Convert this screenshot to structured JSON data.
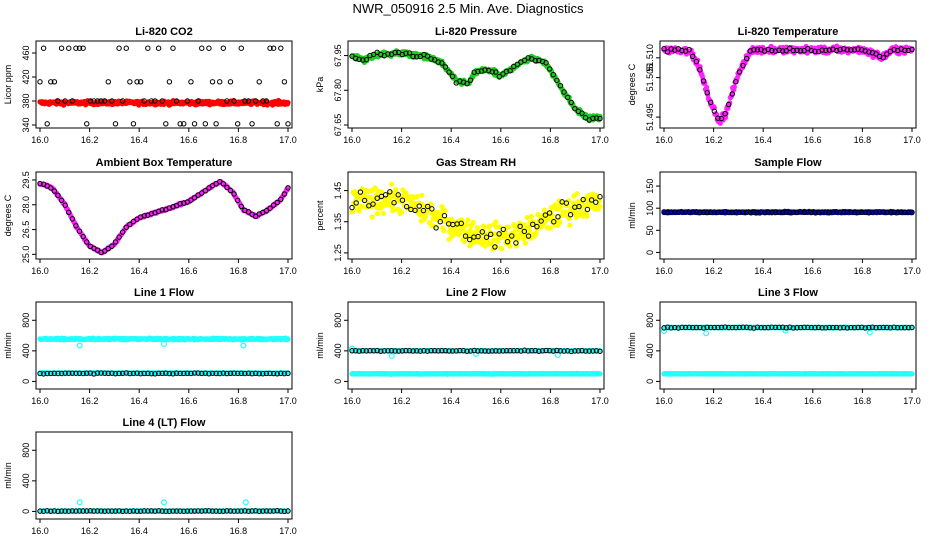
{
  "title": "NWR_050916  2.5 Min. Ave. Diagnostics",
  "colors": {
    "red": "#ff0000",
    "green": "#22cc22",
    "magenta": "#ff22ff",
    "yellow": "#ffff00",
    "blue": "#0000cc",
    "cyan": "#22ffff",
    "black": "#000000"
  },
  "chart_data": [
    {
      "type": "scatter",
      "title": "Li-820 CO2",
      "ylabel": "Licor ppm",
      "xticks": [
        "16.0",
        "16.2",
        "16.4",
        "16.6",
        "16.8",
        "17.0"
      ],
      "xlim": [
        16.0,
        17.0
      ],
      "yticks": [
        "340",
        "380",
        "420",
        "460"
      ],
      "ylim": [
        340,
        475
      ],
      "bg": {
        "color": "red",
        "shape": "flat",
        "level": 377,
        "noise": 3
      },
      "fg": {
        "shape": "levels",
        "levels": [
          342,
          380,
          412,
          468
        ],
        "weights": [
          0.25,
          0.35,
          0.15,
          0.25
        ],
        "count": 70
      }
    },
    {
      "type": "scatter",
      "title": "Li-820 Pressure",
      "ylabel": "kPa",
      "xticks": [
        "16.0",
        "16.2",
        "16.4",
        "16.6",
        "16.8",
        "17.0"
      ],
      "xlim": [
        16.0,
        17.0
      ],
      "yticks": [
        "67.65",
        "67.80",
        "67.95"
      ],
      "ylim": [
        67.65,
        68.0
      ],
      "bg": {
        "color": "green",
        "shape": "curve",
        "points": [
          [
            16.0,
            67.95
          ],
          [
            16.05,
            67.93
          ],
          [
            16.1,
            67.955
          ],
          [
            16.2,
            67.96
          ],
          [
            16.3,
            67.945
          ],
          [
            16.36,
            67.92
          ],
          [
            16.42,
            67.84
          ],
          [
            16.47,
            67.83
          ],
          [
            16.5,
            67.88
          ],
          [
            16.55,
            67.89
          ],
          [
            16.6,
            67.86
          ],
          [
            16.65,
            67.9
          ],
          [
            16.72,
            67.94
          ],
          [
            16.78,
            67.92
          ],
          [
            16.85,
            67.8
          ],
          [
            16.9,
            67.72
          ],
          [
            16.95,
            67.68
          ],
          [
            17.0,
            67.68
          ]
        ],
        "noise": 0.01
      },
      "fg": {
        "shape": "follow",
        "count": 70,
        "noise": 0.008
      }
    },
    {
      "type": "scatter",
      "title": "Li-820 Temperature",
      "ylabel": "degrees C",
      "xticks": [
        "16.0",
        "16.2",
        "16.4",
        "16.6",
        "16.8",
        "17.0"
      ],
      "xlim": [
        16.0,
        17.0
      ],
      "yticks": [
        "51.495",
        "51.505",
        "51.510"
      ],
      "ylim": [
        51.493,
        51.5135
      ],
      "bg": {
        "color": "magenta",
        "shape": "curve",
        "points": [
          [
            16.0,
            51.512
          ],
          [
            16.1,
            51.512
          ],
          [
            16.14,
            51.508
          ],
          [
            16.18,
            51.5
          ],
          [
            16.22,
            51.494
          ],
          [
            16.25,
            51.496
          ],
          [
            16.3,
            51.506
          ],
          [
            16.35,
            51.512
          ],
          [
            16.8,
            51.512
          ],
          [
            16.85,
            51.511
          ],
          [
            16.88,
            51.51
          ],
          [
            16.92,
            51.512
          ],
          [
            17.0,
            51.512
          ]
        ],
        "noise": 0.0008
      },
      "fg": {
        "shape": "follow",
        "count": 70,
        "noise": 0.0004
      }
    },
    {
      "type": "scatter",
      "title": "Ambient Box Temperature",
      "ylabel": "degrees C",
      "xticks": [
        "16.0",
        "16.2",
        "16.4",
        "16.6",
        "16.8",
        "17.0"
      ],
      "xlim": [
        16.0,
        17.0
      ],
      "yticks": [
        "25.0",
        "26.5",
        "28.0",
        "29.5"
      ],
      "ylim": [
        24.9,
        29.8
      ],
      "bg": {
        "color": "magenta",
        "shape": "curve",
        "points": [
          [
            16.0,
            29.3
          ],
          [
            16.05,
            29.0
          ],
          [
            16.1,
            28.0
          ],
          [
            16.15,
            26.6
          ],
          [
            16.2,
            25.5
          ],
          [
            16.25,
            25.1
          ],
          [
            16.3,
            25.6
          ],
          [
            16.35,
            26.7
          ],
          [
            16.4,
            27.2
          ],
          [
            16.5,
            27.7
          ],
          [
            16.6,
            28.2
          ],
          [
            16.7,
            29.2
          ],
          [
            16.73,
            29.4
          ],
          [
            16.78,
            28.7
          ],
          [
            16.82,
            27.7
          ],
          [
            16.87,
            27.3
          ],
          [
            16.92,
            27.7
          ],
          [
            16.97,
            28.3
          ],
          [
            17.0,
            29.0
          ]
        ],
        "noise": 0.05
      },
      "fg": {
        "shape": "follow",
        "count": 70,
        "noise": 0.04
      }
    },
    {
      "type": "scatter",
      "title": "Gas Stream RH",
      "ylabel": "percent",
      "xticks": [
        "16.0",
        "16.2",
        "16.4",
        "16.6",
        "16.8",
        "17.0"
      ],
      "xlim": [
        16.0,
        17.0
      ],
      "yticks": [
        "1.25",
        "1.35",
        "1.45"
      ],
      "ylim": [
        1.24,
        1.5
      ],
      "bg": {
        "color": "yellow",
        "shape": "curve",
        "points": [
          [
            16.0,
            1.41
          ],
          [
            16.1,
            1.42
          ],
          [
            16.2,
            1.42
          ],
          [
            16.3,
            1.38
          ],
          [
            16.4,
            1.34
          ],
          [
            16.5,
            1.31
          ],
          [
            16.6,
            1.3
          ],
          [
            16.7,
            1.32
          ],
          [
            16.8,
            1.36
          ],
          [
            16.9,
            1.4
          ],
          [
            17.0,
            1.41
          ]
        ],
        "noise": 0.04
      },
      "fg": {
        "shape": "follow",
        "count": 60,
        "noise": 0.03
      }
    },
    {
      "type": "scatter",
      "title": "Sample Flow",
      "ylabel": "ml/min",
      "xticks": [
        "16.0",
        "16.2",
        "16.4",
        "16.6",
        "16.8",
        "17.0"
      ],
      "xlim": [
        16.0,
        17.0
      ],
      "yticks": [
        "0",
        "50",
        "100",
        "150"
      ],
      "ylim": [
        -8,
        175
      ],
      "bg": {
        "color": "blue",
        "shape": "flat",
        "level": 91,
        "noise": 1.5
      },
      "fg": {
        "shape": "flat",
        "level": 91,
        "count": 70,
        "noise": 1.2
      }
    },
    {
      "type": "scatter",
      "title": "Line 1 Flow",
      "ylabel": "ml/min",
      "xticks": [
        "16.0",
        "16.2",
        "16.4",
        "16.6",
        "16.8",
        "17.0"
      ],
      "xlim": [
        16.0,
        17.0
      ],
      "yticks": [
        "0",
        "400",
        "800"
      ],
      "ylim": [
        -60,
        1000
      ],
      "bg": {
        "color": "cyan",
        "shape": "flat",
        "level": 555,
        "noise": 10,
        "second": {
          "level": 110,
          "noise": 5
        },
        "dips": [
          [
            16.16,
            470
          ],
          [
            16.5,
            490
          ],
          [
            16.82,
            470
          ]
        ]
      },
      "fg": {
        "shape": "flat",
        "level": 105,
        "count": 70,
        "noise": 6
      }
    },
    {
      "type": "scatter",
      "title": "Line 2 Flow",
      "ylabel": "ml/min",
      "xticks": [
        "16.0",
        "16.2",
        "16.4",
        "16.6",
        "16.8",
        "17.0"
      ],
      "xlim": [
        16.0,
        17.0
      ],
      "yticks": [
        "0",
        "400",
        "800"
      ],
      "ylim": [
        -60,
        1000
      ],
      "bg": {
        "color": "cyan",
        "shape": "flat",
        "level": 100,
        "noise": 5,
        "second": {
          "level": 400,
          "noise": 5
        },
        "dips": [
          [
            16.0,
            430
          ],
          [
            16.16,
            335
          ],
          [
            16.5,
            360
          ],
          [
            16.83,
            345
          ]
        ]
      },
      "fg": {
        "shape": "flat",
        "level": 400,
        "count": 70,
        "noise": 6
      }
    },
    {
      "type": "scatter",
      "title": "Line 3 Flow",
      "ylabel": "ml/min",
      "xticks": [
        "16.0",
        "16.2",
        "16.4",
        "16.6",
        "16.8",
        "17.0"
      ],
      "xlim": [
        16.0,
        17.0
      ],
      "yticks": [
        "0",
        "400",
        "800"
      ],
      "ylim": [
        -60,
        1000
      ],
      "bg": {
        "color": "cyan",
        "shape": "flat",
        "level": 100,
        "noise": 4,
        "second": {
          "level": 705,
          "noise": 6
        },
        "dips": [
          [
            16.0,
            660
          ],
          [
            16.17,
            630
          ],
          [
            16.49,
            665
          ],
          [
            16.83,
            640
          ]
        ]
      },
      "fg": {
        "shape": "flat",
        "level": 705,
        "count": 70,
        "noise": 6
      }
    },
    {
      "type": "scatter",
      "title": "Line 4 (LT) Flow",
      "ylabel": "ml/min",
      "xticks": [
        "16.0",
        "16.2",
        "16.4",
        "16.6",
        "16.8",
        "17.0"
      ],
      "xlim": [
        16.0,
        17.0
      ],
      "yticks": [
        "0",
        "400",
        "800"
      ],
      "ylim": [
        -60,
        1000
      ],
      "bg": {
        "color": "cyan",
        "shape": "flat",
        "level": 5,
        "noise": 3,
        "spikes": [
          [
            16.16,
            120
          ],
          [
            16.5,
            120
          ],
          [
            16.83,
            120
          ]
        ]
      },
      "fg": {
        "shape": "flat",
        "level": 5,
        "count": 70,
        "noise": 3
      }
    }
  ]
}
